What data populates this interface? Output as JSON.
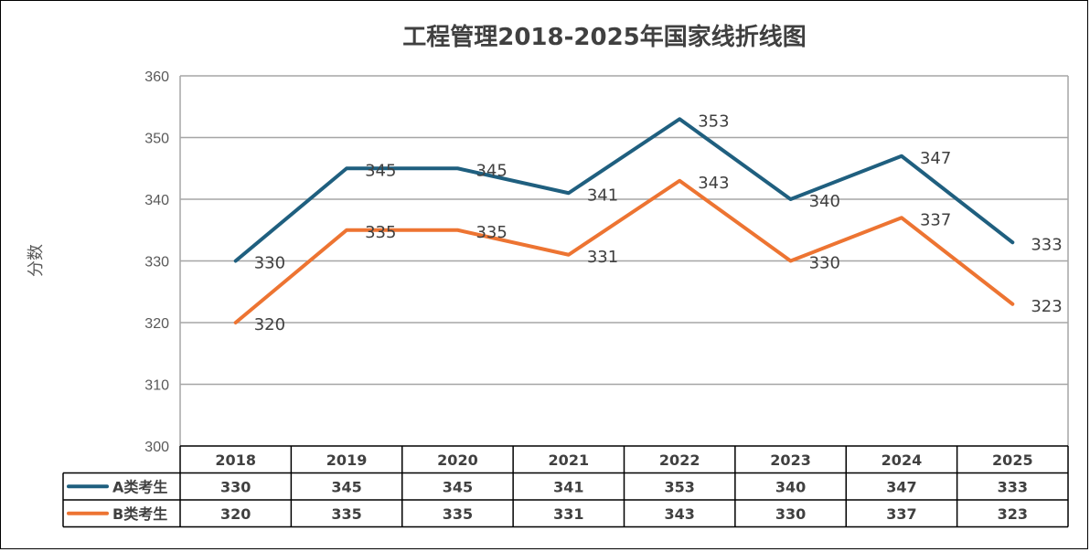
{
  "chart_data": {
    "type": "line",
    "title": "工程管理2018-2025年国家线折线图",
    "ylabel": "分数",
    "xlabel": "",
    "categories": [
      "2018",
      "2019",
      "2020",
      "2021",
      "2022",
      "2023",
      "2024",
      "2025"
    ],
    "series": [
      {
        "name": "A类考生",
        "color": "#1f5f7f",
        "values": [
          330,
          345,
          345,
          341,
          353,
          340,
          347,
          333
        ]
      },
      {
        "name": "B类考生",
        "color": "#ed7432",
        "values": [
          320,
          335,
          335,
          331,
          343,
          330,
          337,
          323
        ]
      }
    ],
    "ylim": [
      300,
      360
    ],
    "yticks": [
      300,
      310,
      320,
      330,
      340,
      350,
      360
    ],
    "grid": true,
    "legend": "data-table-below",
    "data_labels": true
  }
}
